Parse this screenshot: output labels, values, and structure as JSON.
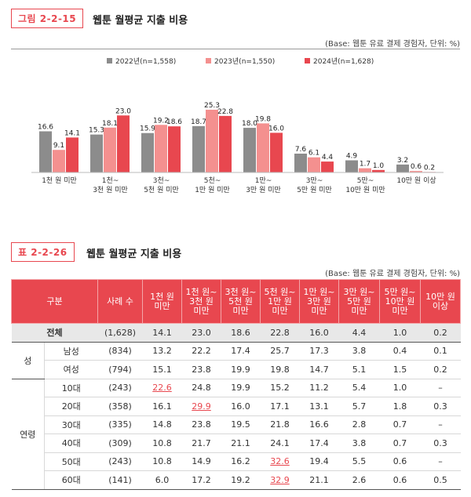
{
  "figure": {
    "label": "그림 2-2-15",
    "title": "웹툰 월평균 지출 비용",
    "base_note": "(Base: 웹툰 유료 결제 경험자, 단위: %)"
  },
  "chart_data": {
    "type": "bar",
    "title": "웹툰 월평균 지출 비용",
    "categories": [
      [
        "1천 원 미만"
      ],
      [
        "1천~",
        "3천 원 미만"
      ],
      [
        "3천~",
        "5천 원 미만"
      ],
      [
        "5천~",
        "1만 원 미만"
      ],
      [
        "1만~",
        "3만 원 미만"
      ],
      [
        "3만~",
        "5만 원 미만"
      ],
      [
        "5만~",
        "10만 원 미만"
      ],
      [
        "10만 원 이상"
      ]
    ],
    "series": [
      {
        "name": "2022년(n=1,558)",
        "color": "#8c8c8c",
        "values": [
          16.6,
          15.3,
          15.9,
          18.7,
          18.0,
          7.6,
          4.9,
          3.2
        ]
      },
      {
        "name": "2023년(n=1,550)",
        "color": "#f4908f",
        "values": [
          9.1,
          18.1,
          19.2,
          25.3,
          19.8,
          6.1,
          1.7,
          0.6
        ]
      },
      {
        "name": "2024년(n=1,628)",
        "color": "#e8474f",
        "values": [
          14.1,
          23.0,
          18.6,
          22.8,
          16.0,
          4.4,
          1.0,
          0.2
        ]
      }
    ],
    "ylim": [
      0,
      30
    ],
    "legend": "top-center"
  },
  "table": {
    "label": "표 2-2-26",
    "title": "웹툰 월평균 지출 비용",
    "base_note": "(Base: 웹툰 유료 결제 경험자, 단위: %)",
    "headers": [
      "구분",
      "사례 수",
      "1천 원\n미만",
      "1천 원~\n3천 원\n미만",
      "3천 원~\n5천 원\n미만",
      "5천 원~\n1만 원\n미만",
      "1만 원~\n3만 원\n미만",
      "3만 원~\n5만 원\n미만",
      "5만 원~\n10만 원\n미만",
      "10만 원\n이상"
    ],
    "total": {
      "label": "전체",
      "n": "(1,628)",
      "values": [
        "14.1",
        "23.0",
        "18.6",
        "22.8",
        "16.0",
        "4.4",
        "1.0",
        "0.2"
      ]
    },
    "groups": [
      {
        "name": "성",
        "rows": [
          {
            "label": "남성",
            "n": "(834)",
            "values": [
              "13.2",
              "22.2",
              "17.4",
              "25.7",
              "17.3",
              "3.8",
              "0.4",
              "0.1"
            ],
            "highlight": []
          },
          {
            "label": "여성",
            "n": "(794)",
            "values": [
              "15.1",
              "23.8",
              "19.9",
              "19.8",
              "14.7",
              "5.1",
              "1.5",
              "0.2"
            ],
            "highlight": []
          }
        ]
      },
      {
        "name": "연령",
        "rows": [
          {
            "label": "10대",
            "n": "(243)",
            "values": [
              "22.6",
              "24.8",
              "19.9",
              "15.2",
              "11.2",
              "5.4",
              "1.0",
              "–"
            ],
            "highlight": [
              0
            ]
          },
          {
            "label": "20대",
            "n": "(358)",
            "values": [
              "16.1",
              "29.9",
              "16.0",
              "17.1",
              "13.1",
              "5.7",
              "1.8",
              "0.3"
            ],
            "highlight": [
              1
            ]
          },
          {
            "label": "30대",
            "n": "(335)",
            "values": [
              "14.8",
              "23.8",
              "19.5",
              "21.8",
              "16.6",
              "2.8",
              "0.7",
              "–"
            ],
            "highlight": []
          },
          {
            "label": "40대",
            "n": "(309)",
            "values": [
              "10.8",
              "21.7",
              "21.1",
              "24.1",
              "17.4",
              "3.8",
              "0.7",
              "0.3"
            ],
            "highlight": []
          },
          {
            "label": "50대",
            "n": "(243)",
            "values": [
              "10.8",
              "14.9",
              "16.2",
              "32.6",
              "19.4",
              "5.5",
              "0.6",
              "–"
            ],
            "highlight": [
              3
            ]
          },
          {
            "label": "60대",
            "n": "(141)",
            "values": [
              "6.0",
              "17.2",
              "19.2",
              "32.9",
              "21.1",
              "2.6",
              "0.6",
              "0.5"
            ],
            "highlight": [
              3
            ]
          }
        ]
      }
    ]
  }
}
